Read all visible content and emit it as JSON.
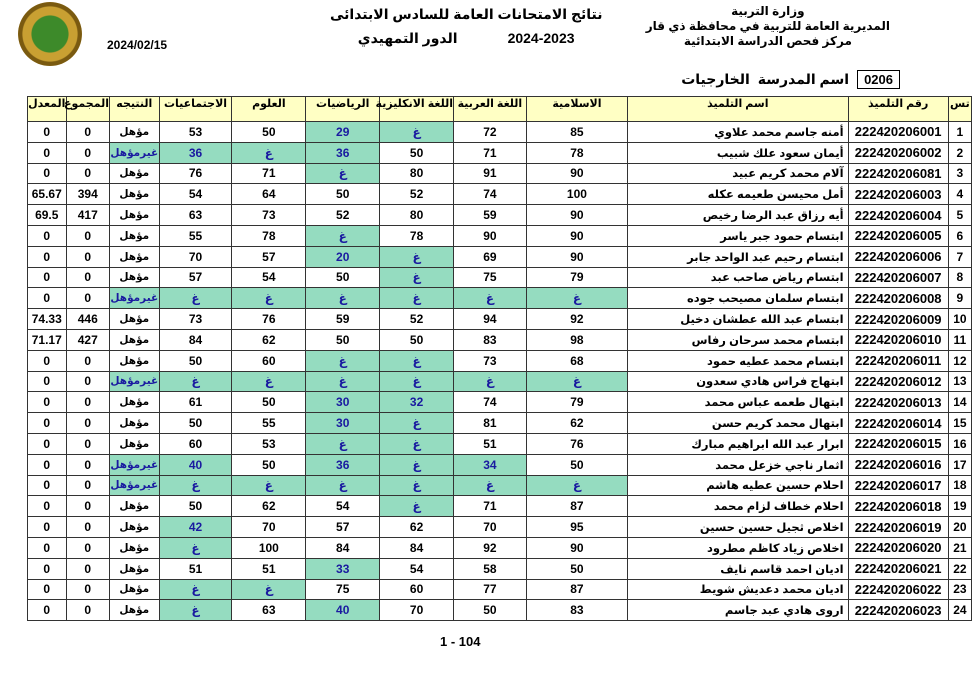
{
  "header": {
    "ministry": "وزارة التربية",
    "directorate": "المديرية العامة للتربية في محافظة ذي قار",
    "center": "مركز فحص الدراسة الابتدائية",
    "title": "نتائج الامتحانات  العامة للسادس الابتدائى",
    "year": "2024-2023",
    "round": "الدور التمهيدي",
    "date": "2024/02/15"
  },
  "school": {
    "code": "0206",
    "label": "اسم المدرسة",
    "name": "الخارجيات"
  },
  "colors": {
    "fail_bg": "#95dcc0",
    "fail_text": "#1a1aa0",
    "header_bg": "#ffffc4"
  },
  "columns": [
    "تس",
    "رقم التلميذ",
    "اسم التلميذ",
    "الاسلامية",
    "اللغة العربية",
    "اللغة الانكليزية",
    "الرياضيات",
    "العلوم",
    "الاجتماعيات",
    "النتيجه",
    "المجموع",
    "المعدل"
  ],
  "rows": [
    [
      "1",
      "222420206001",
      "أمنه جاسم محمد علاوي",
      "85",
      "72",
      "غ",
      "29",
      "50",
      "53",
      "مؤهل",
      "0",
      "0"
    ],
    [
      "2",
      "222420206002",
      "أيمان سعود علك شبيب",
      "78",
      "71",
      "50",
      "36",
      "غ",
      "36",
      "غيرمؤهل",
      "0",
      "0"
    ],
    [
      "3",
      "222420206081",
      "آلام  محمد كريم عبيد",
      "90",
      "91",
      "80",
      "غ",
      "71",
      "76",
      "مؤهل",
      "0",
      "0"
    ],
    [
      "4",
      "222420206003",
      "أمل محيسن طعيمه عكله",
      "100",
      "74",
      "52",
      "50",
      "64",
      "54",
      "مؤهل",
      "394",
      "65.67"
    ],
    [
      "5",
      "222420206004",
      "أيه رزاق عبد الرضا رخيص",
      "90",
      "59",
      "80",
      "52",
      "73",
      "63",
      "مؤهل",
      "417",
      "69.5"
    ],
    [
      "6",
      "222420206005",
      "ابتسام حمود جبر ياسر",
      "90",
      "90",
      "78",
      "غ",
      "78",
      "55",
      "مؤهل",
      "0",
      "0"
    ],
    [
      "7",
      "222420206006",
      "ابتسام رحيم عبد الواحد جابر",
      "90",
      "69",
      "غ",
      "20",
      "57",
      "70",
      "مؤهل",
      "0",
      "0"
    ],
    [
      "8",
      "222420206007",
      "ابتسام رياض صاحب عبد",
      "79",
      "75",
      "غ",
      "50",
      "54",
      "57",
      "مؤهل",
      "0",
      "0"
    ],
    [
      "9",
      "222420206008",
      "ابتسام سلمان مصيحب جوده",
      "غ",
      "غ",
      "غ",
      "غ",
      "غ",
      "غ",
      "غيرمؤهل",
      "0",
      "0"
    ],
    [
      "10",
      "222420206009",
      "ابتسام عبد الله عطشان دخيل",
      "92",
      "94",
      "52",
      "59",
      "76",
      "73",
      "مؤهل",
      "446",
      "74.33"
    ],
    [
      "11",
      "222420206010",
      "ابتسام محمد سرحان رفاس",
      "98",
      "83",
      "50",
      "50",
      "62",
      "84",
      "مؤهل",
      "427",
      "71.17"
    ],
    [
      "12",
      "222420206011",
      "ابتسام محمد عطيه حمود",
      "68",
      "73",
      "غ",
      "غ",
      "60",
      "50",
      "مؤهل",
      "0",
      "0"
    ],
    [
      "13",
      "222420206012",
      "ابتهاج فراس هادي سعدون",
      "غ",
      "غ",
      "غ",
      "غ",
      "غ",
      "غ",
      "غيرمؤهل",
      "0",
      "0"
    ],
    [
      "14",
      "222420206013",
      "ابتهال طعمه عباس محمد",
      "79",
      "74",
      "32",
      "30",
      "50",
      "61",
      "مؤهل",
      "0",
      "0"
    ],
    [
      "15",
      "222420206014",
      "ابتهال محمد كريم حسن",
      "62",
      "81",
      "غ",
      "30",
      "55",
      "50",
      "مؤهل",
      "0",
      "0"
    ],
    [
      "16",
      "222420206015",
      "ابرار عبد الله ابراهيم مبارك",
      "76",
      "51",
      "غ",
      "غ",
      "53",
      "60",
      "مؤهل",
      "0",
      "0"
    ],
    [
      "17",
      "222420206016",
      "اثمار ناجي خزعل محمد",
      "50",
      "34",
      "غ",
      "36",
      "50",
      "40",
      "غيرمؤهل",
      "0",
      "0"
    ],
    [
      "18",
      "222420206017",
      "احلام  حسين عطيه هاشم",
      "غ",
      "غ",
      "غ",
      "غ",
      "غ",
      "غ",
      "غيرمؤهل",
      "0",
      "0"
    ],
    [
      "19",
      "222420206018",
      "احلام  خطاف لزام محمد",
      "87",
      "71",
      "غ",
      "54",
      "62",
      "50",
      "مؤهل",
      "0",
      "0"
    ],
    [
      "20",
      "222420206019",
      "اخلاص  ثجيل حسين حسين",
      "95",
      "70",
      "62",
      "57",
      "70",
      "42",
      "مؤهل",
      "0",
      "0"
    ],
    [
      "21",
      "222420206020",
      "اخلاص  زياد كاظم مطرود",
      "90",
      "92",
      "84",
      "84",
      "100",
      "غ",
      "مؤهل",
      "0",
      "0"
    ],
    [
      "22",
      "222420206021",
      "اديان احمد قاسم نايف",
      "50",
      "58",
      "54",
      "33",
      "51",
      "51",
      "مؤهل",
      "0",
      "0"
    ],
    [
      "23",
      "222420206022",
      "اديان محمد دعديش شويط",
      "87",
      "77",
      "60",
      "75",
      "غ",
      "غ",
      "مؤهل",
      "0",
      "0"
    ],
    [
      "24",
      "222420206023",
      "اروى هادي عبد جاسم",
      "83",
      "50",
      "70",
      "40",
      "63",
      "غ",
      "مؤهل",
      "0",
      "0"
    ]
  ],
  "footer": {
    "page": "1 - 104"
  }
}
